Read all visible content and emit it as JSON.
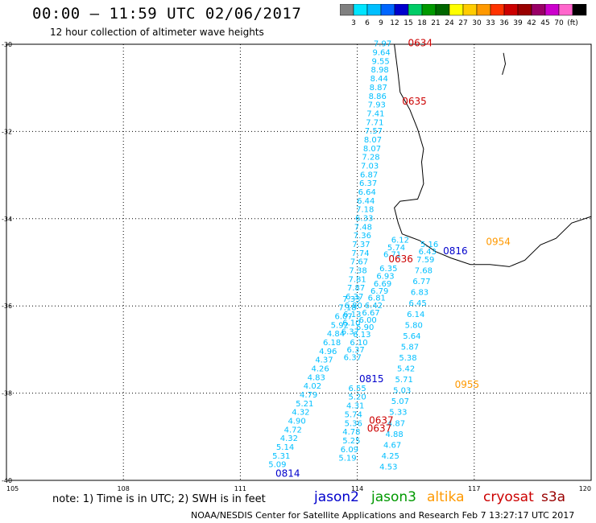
{
  "header": {
    "title": "00:00 – 11:59 UTC 02/06/2017",
    "subtitle": "12 hour collection of altimeter wave heights"
  },
  "colorbar": {
    "colors": [
      "#808080",
      "#00e5ff",
      "#00bfff",
      "#0066ff",
      "#0000cc",
      "#00cc66",
      "#009900",
      "#006600",
      "#ffff00",
      "#ffcc00",
      "#ff9900",
      "#ff3300",
      "#cc0000",
      "#990000",
      "#990066",
      "#cc00cc",
      "#ff66cc",
      "#000000"
    ],
    "labels": [
      "3",
      "6",
      "9",
      "12",
      "15",
      "18",
      "21",
      "24",
      "27",
      "30",
      "33",
      "36",
      "39",
      "42",
      "45",
      "70",
      "(ft)"
    ]
  },
  "chart_data": {
    "type": "map",
    "xlim": [
      105,
      120
    ],
    "ylim": [
      -40,
      -30
    ],
    "x_ticks": [
      105,
      108,
      111,
      114,
      117,
      120
    ],
    "y_ticks": [
      -30,
      -32,
      -34,
      -36,
      -38,
      -40
    ],
    "x_tick_labels": [
      "105",
      "108",
      "111",
      "114",
      "117",
      "120"
    ],
    "y_tick_labels": [
      "-30",
      "-32",
      "-34",
      "-36",
      "-38",
      "-40"
    ],
    "grid": true,
    "track_color": "#00bfff",
    "time_labels": [
      {
        "text": "0634",
        "lon": 115.3,
        "lat": -30.05,
        "color": "#cc0000"
      },
      {
        "text": "0635",
        "lon": 115.15,
        "lat": -31.38,
        "color": "#cc0000"
      },
      {
        "text": "0636",
        "lon": 114.8,
        "lat": -35.0,
        "color": "#cc0000"
      },
      {
        "text": "0637",
        "lon": 114.3,
        "lat": -38.7,
        "color": "#cc0000"
      },
      {
        "text": "0637",
        "lon": 114.25,
        "lat": -38.88,
        "color": "#cc0000"
      },
      {
        "text": "0816",
        "lon": 116.2,
        "lat": -34.82,
        "color": "#0000cc"
      },
      {
        "text": "0815",
        "lon": 114.05,
        "lat": -37.75,
        "color": "#0000cc"
      },
      {
        "text": "0814",
        "lon": 111.9,
        "lat": -39.92,
        "color": "#0000cc"
      },
      {
        "text": "0954",
        "lon": 117.3,
        "lat": -34.6,
        "color": "#ff9900"
      },
      {
        "text": "0955",
        "lon": 116.5,
        "lat": -37.88,
        "color": "#ff9900"
      }
    ],
    "tracks": [
      {
        "name": "cryosat",
        "points": [
          {
            "lon": 114.65,
            "lat": -30.05,
            "v": "7.97"
          },
          {
            "lon": 114.62,
            "lat": -30.25,
            "v": "9.64"
          },
          {
            "lon": 114.6,
            "lat": -30.45,
            "v": "9.55"
          },
          {
            "lon": 114.58,
            "lat": -30.65,
            "v": "8.98"
          },
          {
            "lon": 114.56,
            "lat": -30.85,
            "v": "8.44"
          },
          {
            "lon": 114.54,
            "lat": -31.05,
            "v": "8.87"
          },
          {
            "lon": 114.52,
            "lat": -31.25,
            "v": "8.86"
          },
          {
            "lon": 114.5,
            "lat": -31.45,
            "v": "7.93"
          },
          {
            "lon": 114.47,
            "lat": -31.65,
            "v": "7.41"
          },
          {
            "lon": 114.45,
            "lat": -31.85,
            "v": "7.71"
          },
          {
            "lon": 114.42,
            "lat": -32.05,
            "v": "7.57"
          },
          {
            "lon": 114.4,
            "lat": -32.25,
            "v": "8.07"
          },
          {
            "lon": 114.38,
            "lat": -32.45,
            "v": "8.07"
          },
          {
            "lon": 114.35,
            "lat": -32.65,
            "v": "7.28"
          },
          {
            "lon": 114.32,
            "lat": -32.85,
            "v": "7.03"
          },
          {
            "lon": 114.3,
            "lat": -33.05,
            "v": "6.87"
          },
          {
            "lon": 114.28,
            "lat": -33.25,
            "v": "6.37"
          },
          {
            "lon": 114.25,
            "lat": -33.45,
            "v": "6.64"
          },
          {
            "lon": 114.22,
            "lat": -33.65,
            "v": "6.44"
          },
          {
            "lon": 114.2,
            "lat": -33.85,
            "v": "7.18"
          },
          {
            "lon": 114.18,
            "lat": -34.05,
            "v": "6.33"
          },
          {
            "lon": 114.15,
            "lat": -34.25,
            "v": "7.48"
          },
          {
            "lon": 114.13,
            "lat": -34.45,
            "v": "7.36"
          },
          {
            "lon": 114.1,
            "lat": -34.65,
            "v": "7.37"
          },
          {
            "lon": 114.08,
            "lat": -34.85,
            "v": "7.74"
          },
          {
            "lon": 114.05,
            "lat": -35.05,
            "v": "7.67"
          },
          {
            "lon": 114.02,
            "lat": -35.25,
            "v": "7.38"
          },
          {
            "lon": 114.0,
            "lat": -35.45,
            "v": "7.81"
          },
          {
            "lon": 113.97,
            "lat": -35.65,
            "v": "7.87"
          },
          {
            "lon": 113.93,
            "lat": -35.85,
            "v": "6.37"
          },
          {
            "lon": 113.9,
            "lat": -36.05,
            "v": "6.80"
          },
          {
            "lon": 113.87,
            "lat": -36.25,
            "v": "6.13"
          },
          {
            "lon": 113.85,
            "lat": -36.45,
            "v": "6.10"
          },
          {
            "lon": 113.82,
            "lat": -36.65,
            "v": "6.37"
          }
        ]
      },
      {
        "name": "jason2-near",
        "points": [
          {
            "lon": 115.1,
            "lat": -34.55,
            "v": "6.12"
          },
          {
            "lon": 115.0,
            "lat": -34.72,
            "v": "5.74"
          },
          {
            "lon": 114.9,
            "lat": -34.88,
            "v": "6.71"
          },
          {
            "lon": 114.8,
            "lat": -35.2,
            "v": "6.35"
          },
          {
            "lon": 114.72,
            "lat": -35.38,
            "v": "6.93"
          },
          {
            "lon": 114.65,
            "lat": -35.55,
            "v": "6.69"
          },
          {
            "lon": 114.57,
            "lat": -35.72,
            "v": "6.79"
          },
          {
            "lon": 114.5,
            "lat": -35.88,
            "v": "6.81"
          },
          {
            "lon": 114.42,
            "lat": -36.05,
            "v": "6.42"
          },
          {
            "lon": 114.35,
            "lat": -36.22,
            "v": "6.67"
          },
          {
            "lon": 114.27,
            "lat": -36.38,
            "v": "6.00"
          },
          {
            "lon": 114.2,
            "lat": -36.55,
            "v": "5.90"
          },
          {
            "lon": 114.12,
            "lat": -36.72,
            "v": "6.13"
          },
          {
            "lon": 114.04,
            "lat": -36.9,
            "v": "6.10"
          },
          {
            "lon": 113.96,
            "lat": -37.07,
            "v": "6.37"
          },
          {
            "lon": 113.88,
            "lat": -37.24,
            "v": "6.37"
          }
        ]
      },
      {
        "name": "jason2-far",
        "points": [
          {
            "lon": 113.85,
            "lat": -35.9,
            "v": "7.33"
          },
          {
            "lon": 113.75,
            "lat": -36.1,
            "v": "7.18"
          },
          {
            "lon": 113.65,
            "lat": -36.3,
            "v": "6.07"
          },
          {
            "lon": 113.55,
            "lat": -36.5,
            "v": "5.92"
          },
          {
            "lon": 113.45,
            "lat": -36.7,
            "v": "4.84"
          },
          {
            "lon": 113.35,
            "lat": -36.9,
            "v": "6.18"
          },
          {
            "lon": 113.25,
            "lat": -37.1,
            "v": "4.96"
          },
          {
            "lon": 113.15,
            "lat": -37.3,
            "v": "4.37"
          },
          {
            "lon": 113.05,
            "lat": -37.5,
            "v": "4.26"
          },
          {
            "lon": 112.95,
            "lat": -37.7,
            "v": "4.83"
          },
          {
            "lon": 112.85,
            "lat": -37.9,
            "v": "4.02"
          },
          {
            "lon": 112.75,
            "lat": -38.1,
            "v": "4.79"
          },
          {
            "lon": 112.65,
            "lat": -38.3,
            "v": "5.21"
          },
          {
            "lon": 112.55,
            "lat": -38.5,
            "v": "4.32"
          },
          {
            "lon": 112.45,
            "lat": -38.7,
            "v": "4.90"
          },
          {
            "lon": 112.35,
            "lat": -38.9,
            "v": "4.72"
          },
          {
            "lon": 112.25,
            "lat": -39.1,
            "v": "4.32"
          },
          {
            "lon": 112.15,
            "lat": -39.3,
            "v": "5.14"
          },
          {
            "lon": 112.05,
            "lat": -39.5,
            "v": "5.31"
          },
          {
            "lon": 111.95,
            "lat": -39.7,
            "v": "5.09"
          }
        ]
      },
      {
        "name": "jason2-mid",
        "points": [
          {
            "lon": 114.0,
            "lat": -37.95,
            "v": "6.55"
          },
          {
            "lon": 114.0,
            "lat": -38.15,
            "v": "5.20"
          },
          {
            "lon": 113.95,
            "lat": -38.35,
            "v": "4.31"
          },
          {
            "lon": 113.9,
            "lat": -38.55,
            "v": "5.74"
          },
          {
            "lon": 113.9,
            "lat": -38.75,
            "v": "5.36"
          },
          {
            "lon": 113.85,
            "lat": -38.95,
            "v": "4.78"
          },
          {
            "lon": 113.85,
            "lat": -39.15,
            "v": "5.25"
          },
          {
            "lon": 113.8,
            "lat": -39.35,
            "v": "6.09"
          },
          {
            "lon": 113.75,
            "lat": -39.55,
            "v": "5.19"
          }
        ]
      },
      {
        "name": "altika",
        "points": [
          {
            "lon": 115.85,
            "lat": -34.65,
            "v": "5.16"
          },
          {
            "lon": 115.8,
            "lat": -34.82,
            "v": "6.43"
          },
          {
            "lon": 115.75,
            "lat": -35.0,
            "v": "7.59"
          },
          {
            "lon": 115.7,
            "lat": -35.25,
            "v": "7.68"
          },
          {
            "lon": 115.65,
            "lat": -35.5,
            "v": "6.77"
          },
          {
            "lon": 115.6,
            "lat": -35.75,
            "v": "6.83"
          },
          {
            "lon": 115.55,
            "lat": -36.0,
            "v": "6.45"
          },
          {
            "lon": 115.5,
            "lat": -36.25,
            "v": "6.14"
          },
          {
            "lon": 115.45,
            "lat": -36.5,
            "v": "5.80"
          },
          {
            "lon": 115.4,
            "lat": -36.75,
            "v": "5.64"
          },
          {
            "lon": 115.35,
            "lat": -37.0,
            "v": "5.87"
          },
          {
            "lon": 115.3,
            "lat": -37.25,
            "v": "5.38"
          },
          {
            "lon": 115.25,
            "lat": -37.5,
            "v": "5.42"
          },
          {
            "lon": 115.2,
            "lat": -37.75,
            "v": "5.71"
          },
          {
            "lon": 115.15,
            "lat": -38.0,
            "v": "5.03"
          },
          {
            "lon": 115.1,
            "lat": -38.25,
            "v": "5.07"
          },
          {
            "lon": 115.05,
            "lat": -38.5,
            "v": "5.33"
          },
          {
            "lon": 115.0,
            "lat": -38.75,
            "v": "4.87"
          },
          {
            "lon": 114.95,
            "lat": -39.0,
            "v": "4.88"
          },
          {
            "lon": 114.9,
            "lat": -39.25,
            "v": "4.67"
          },
          {
            "lon": 114.85,
            "lat": -39.5,
            "v": "4.25"
          },
          {
            "lon": 114.8,
            "lat": -39.75,
            "v": "4.53"
          }
        ]
      }
    ]
  },
  "footer": {
    "note": "note: 1) Time is in UTC; 2) SWH is in feet",
    "satellites": [
      {
        "name": "jason2",
        "color": "#0000cc"
      },
      {
        "name": "jason3",
        "color": "#009900"
      },
      {
        "name": "altika",
        "color": "#ff9900"
      },
      {
        "name": "cryosat",
        "color": "#cc0000"
      },
      {
        "name": "s3a",
        "color": "#990000"
      }
    ],
    "credit": "NOAA/NESDIS Center for Satellite Applications and Research   Feb  7 13:27:17 UTC 2017"
  }
}
